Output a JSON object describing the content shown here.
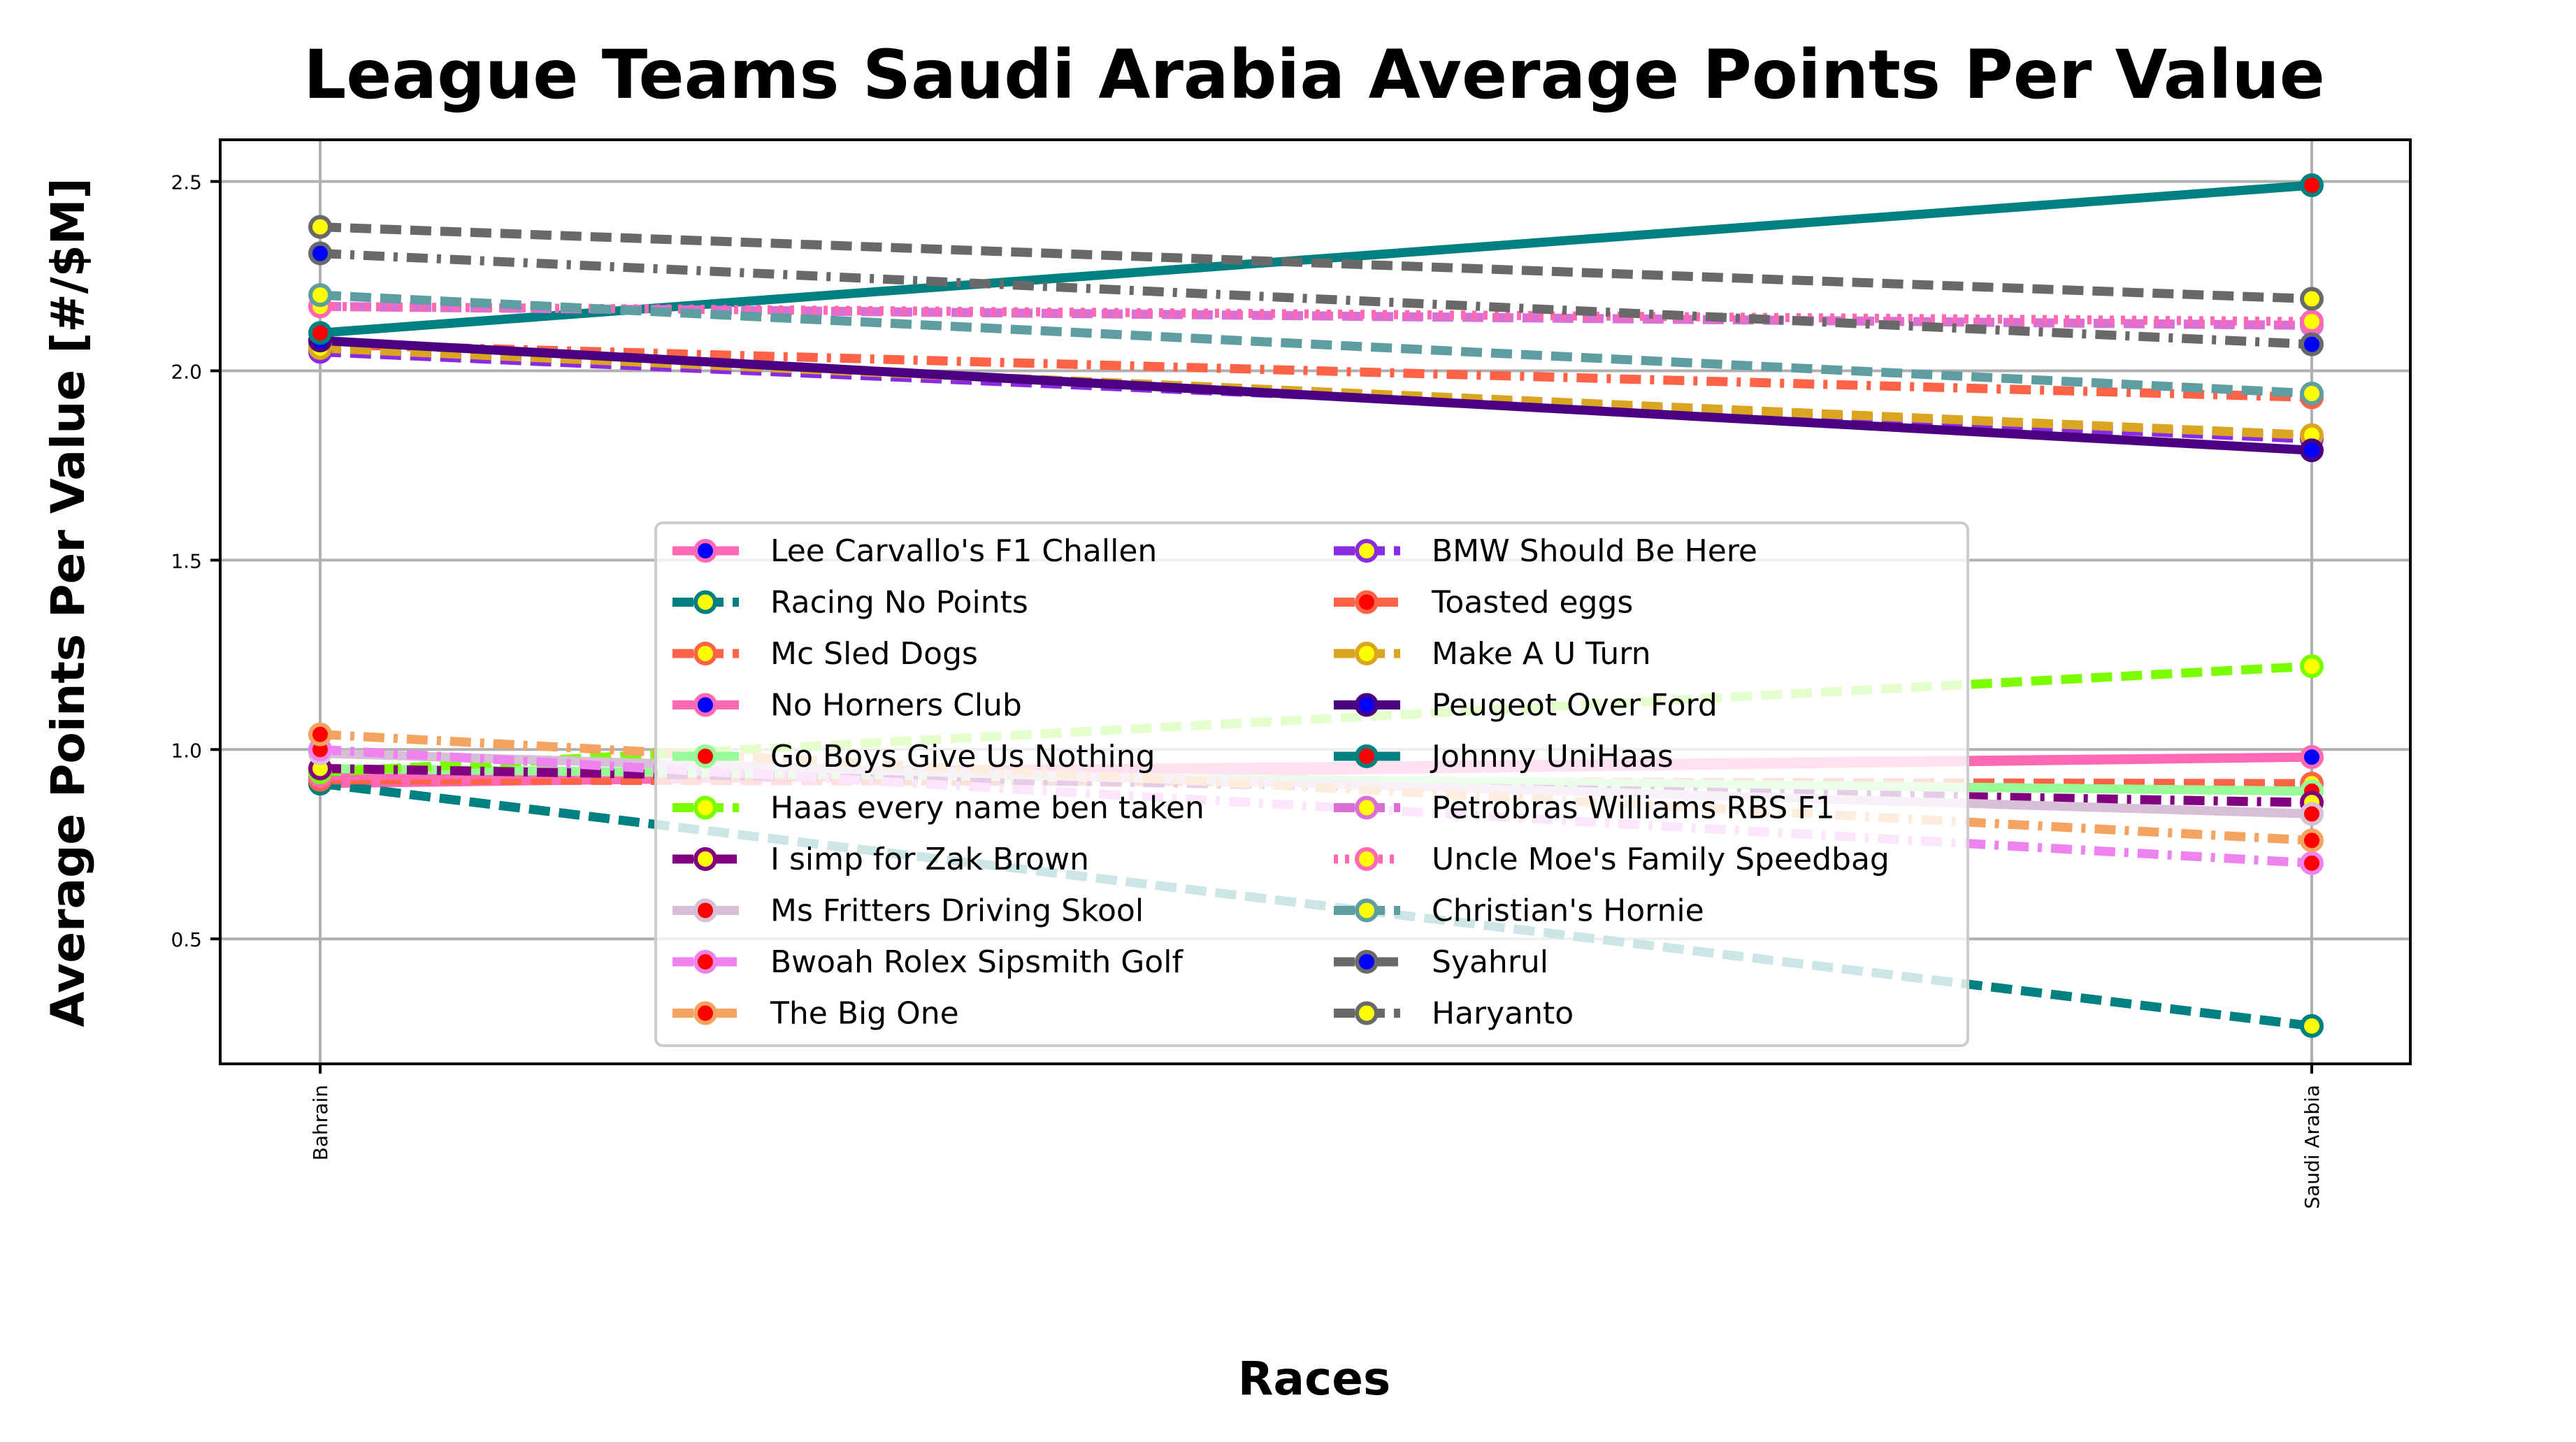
{
  "chart_data": {
    "type": "line",
    "title": "League Teams Saudi Arabia Average Points Per Value",
    "xlabel": "Races",
    "ylabel": "Average Points Per Value [#/$M]",
    "categories": [
      "Bahrain",
      "Saudi Arabia"
    ],
    "ylim": [
      0.17,
      2.61
    ],
    "yticks": [
      0.5,
      1.0,
      1.5,
      2.0,
      2.5
    ],
    "ytick_labels": [
      "0.5",
      "1.0",
      "1.5",
      "2.0",
      "2.5"
    ],
    "grid": true,
    "legend_position": "center-bottom",
    "legend_columns": 2,
    "series": [
      {
        "name": "Lee Carvallo's F1 Challen",
        "values": [
          0.91,
          0.98
        ],
        "color": "#ff69b4",
        "dash": "solid",
        "marker_fill": "#0000ff"
      },
      {
        "name": "Racing No Points",
        "values": [
          0.91,
          0.27
        ],
        "color": "#008080",
        "dash": "dashed",
        "marker_fill": "#ffff00"
      },
      {
        "name": "Mc Sled Dogs",
        "values": [
          0.92,
          0.91
        ],
        "color": "#ff6347",
        "dash": "dashed",
        "marker_fill": "#ffff00"
      },
      {
        "name": "No Horners Club",
        "values": [
          0.93,
          0.98
        ],
        "color": "#ff69b4",
        "dash": "solid",
        "marker_fill": "#0000ff"
      },
      {
        "name": "Go Boys Give Us Nothing",
        "values": [
          0.95,
          0.89
        ],
        "color": "#98fb98",
        "dash": "solid",
        "marker_fill": "#ff0000"
      },
      {
        "name": "Haas every name ben taken",
        "values": [
          0.94,
          1.22
        ],
        "color": "#7cfc00",
        "dash": "dashed",
        "marker_fill": "#ffff00"
      },
      {
        "name": "I simp for Zak Brown",
        "values": [
          0.95,
          0.86
        ],
        "color": "#800080",
        "dash": "dashdot",
        "marker_fill": "#ffff00"
      },
      {
        "name": "Ms Fritters Driving Skool",
        "values": [
          0.99,
          0.83
        ],
        "color": "#d8bfd8",
        "dash": "solid",
        "marker_fill": "#ff0000"
      },
      {
        "name": "Bwoah Rolex Sipsmith Golf",
        "values": [
          1.0,
          0.7
        ],
        "color": "#ee82ee",
        "dash": "dashdot",
        "marker_fill": "#ff0000"
      },
      {
        "name": "The Big One",
        "values": [
          1.04,
          0.76
        ],
        "color": "#f4a460",
        "dash": "dashdot",
        "marker_fill": "#ff0000"
      },
      {
        "name": "BMW Should Be Here",
        "values": [
          2.05,
          1.82
        ],
        "color": "#8a2be2",
        "dash": "dashed",
        "marker_fill": "#ffff00"
      },
      {
        "name": "Toasted eggs",
        "values": [
          2.07,
          1.93
        ],
        "color": "#ff6347",
        "dash": "dashdot",
        "marker_fill": "#ff0000"
      },
      {
        "name": "Make A U Turn",
        "values": [
          2.06,
          1.83
        ],
        "color": "#daa520",
        "dash": "dashed",
        "marker_fill": "#ffff00"
      },
      {
        "name": "Peugeot Over Ford",
        "values": [
          2.08,
          1.79
        ],
        "color": "#4b0082",
        "dash": "solid",
        "marker_fill": "#0000ff"
      },
      {
        "name": "Johnny UniHaas",
        "values": [
          2.1,
          2.49
        ],
        "color": "#008080",
        "dash": "solid",
        "marker_fill": "#ff0000"
      },
      {
        "name": "Petrobras Williams RBS F1",
        "values": [
          2.17,
          2.12
        ],
        "color": "#da70d6",
        "dash": "dashed",
        "marker_fill": "#ffff00"
      },
      {
        "name": "Uncle Moe's Family Speedbag",
        "values": [
          2.17,
          2.13
        ],
        "color": "#ff69b4",
        "dash": "dotted",
        "marker_fill": "#ffff00"
      },
      {
        "name": "Christian's Hornie",
        "values": [
          2.2,
          1.94
        ],
        "color": "#5f9ea0",
        "dash": "dashed",
        "marker_fill": "#ffff00"
      },
      {
        "name": "Syahrul",
        "values": [
          2.31,
          2.07
        ],
        "color": "#696969",
        "dash": "dashdot",
        "marker_fill": "#0000ff"
      },
      {
        "name": "Haryanto",
        "values": [
          2.38,
          2.19
        ],
        "color": "#696969",
        "dash": "dashed",
        "marker_fill": "#ffff00"
      }
    ]
  }
}
